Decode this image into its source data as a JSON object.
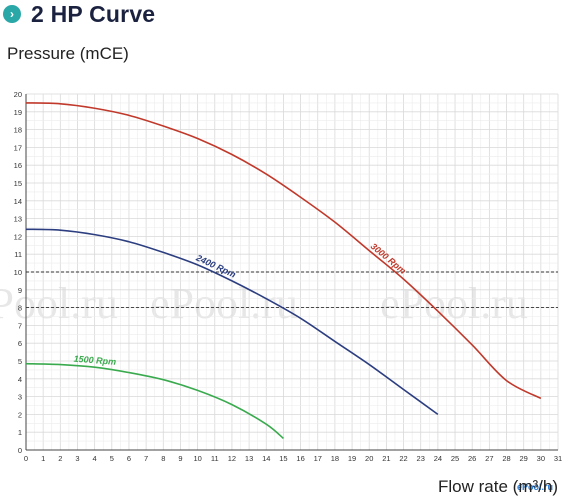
{
  "header": {
    "title": "2 HP Curve",
    "bullet_icon": "chevron-right-icon",
    "accent": "#2aa7a7"
  },
  "chart_data": {
    "type": "line",
    "title": "2 HP Curve",
    "ylabel": "Pressure (mCE)",
    "xlabel_visible": "Flow rate",
    "xlabel_unit_visible": "(m³/h)",
    "xlim": [
      0,
      31
    ],
    "ylim": [
      0,
      20
    ],
    "x_ticks": [
      "0",
      "1",
      "2",
      "3",
      "4",
      "5",
      "6",
      "7",
      "8",
      "9",
      "10",
      "11",
      "12",
      "13",
      "14",
      "15",
      "16",
      "17",
      "18",
      "19",
      "20",
      "21",
      "22",
      "23",
      "24",
      "25",
      "26",
      "27",
      "28",
      "29",
      "30",
      "31"
    ],
    "y_ticks": [
      "0",
      "1",
      "2",
      "3",
      "4",
      "5",
      "6",
      "7",
      "8",
      "9",
      "10",
      "11",
      "12",
      "13",
      "14",
      "15",
      "16",
      "17",
      "18",
      "19",
      "20"
    ],
    "grid": true,
    "reference_lines": [
      10,
      8
    ],
    "series": [
      {
        "name": "3000 Rpm",
        "color": "#c0392b",
        "x": [
          0,
          2,
          4,
          6,
          8,
          10,
          12,
          14,
          16,
          18,
          20,
          22,
          24,
          26,
          28,
          30
        ],
        "y": [
          19.5,
          19.45,
          19.2,
          18.8,
          18.2,
          17.5,
          16.6,
          15.5,
          14.2,
          12.8,
          11.2,
          9.6,
          7.8,
          5.9,
          3.9,
          2.9
        ]
      },
      {
        "name": "2400 Rpm",
        "color": "#2c3e80",
        "x": [
          0,
          2,
          4,
          6,
          8,
          10,
          12,
          14,
          16,
          18,
          20,
          22,
          24
        ],
        "y": [
          12.4,
          12.35,
          12.1,
          11.7,
          11.1,
          10.4,
          9.5,
          8.5,
          7.4,
          6.1,
          4.8,
          3.4,
          2.0
        ]
      },
      {
        "name": "1500 Rpm",
        "color": "#3aaa4e",
        "x": [
          0,
          2,
          4,
          6,
          8,
          10,
          12,
          14,
          15
        ],
        "y": [
          4.85,
          4.8,
          4.65,
          4.35,
          3.95,
          3.35,
          2.55,
          1.45,
          0.65
        ]
      }
    ]
  },
  "watermark": {
    "text": "ePool.ru",
    "corner_text": "ePool.ru"
  }
}
